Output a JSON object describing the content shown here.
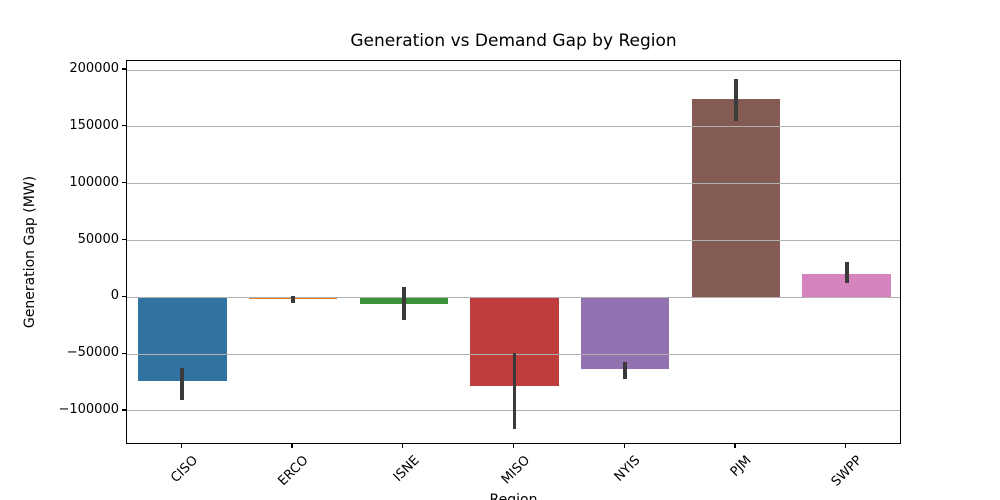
{
  "chart_data": {
    "type": "bar",
    "title": "Generation vs Demand Gap by Region",
    "xlabel": "Region",
    "ylabel": "Generation Gap (MW)",
    "categories": [
      "CISO",
      "ERCO",
      "ISNE",
      "MISO",
      "NYIS",
      "PJM",
      "SWPP"
    ],
    "values": [
      -73500,
      -1200,
      -5500,
      -78500,
      -63500,
      174500,
      20500
    ],
    "error_bars": [
      {
        "low": -90000,
        "high": -62000
      },
      {
        "low": -5200,
        "high": 800
      },
      {
        "low": -20000,
        "high": 9500
      },
      {
        "low": -116000,
        "high": -49000
      },
      {
        "low": -71500,
        "high": -57000
      },
      {
        "low": 155000,
        "high": 192000
      },
      {
        "low": 12500,
        "high": 31000
      }
    ],
    "bar_colors": [
      "#3274a1",
      "#e1812c",
      "#3a923a",
      "#c03d3e",
      "#9372b2",
      "#845b53",
      "#d684bd"
    ],
    "yticks": [
      -100000,
      -50000,
      0,
      50000,
      100000,
      150000,
      200000
    ],
    "ylim": [
      -130000,
      208000
    ],
    "grid": "horizontal",
    "grid_on_top_of_bars": true,
    "gridline_color": "#b0b0b0",
    "error_bar_color": "#3a3a3a",
    "axis_color": "#000000",
    "background": "#ffffff",
    "legend": "none",
    "x_tick_rotation_deg": 45
  }
}
